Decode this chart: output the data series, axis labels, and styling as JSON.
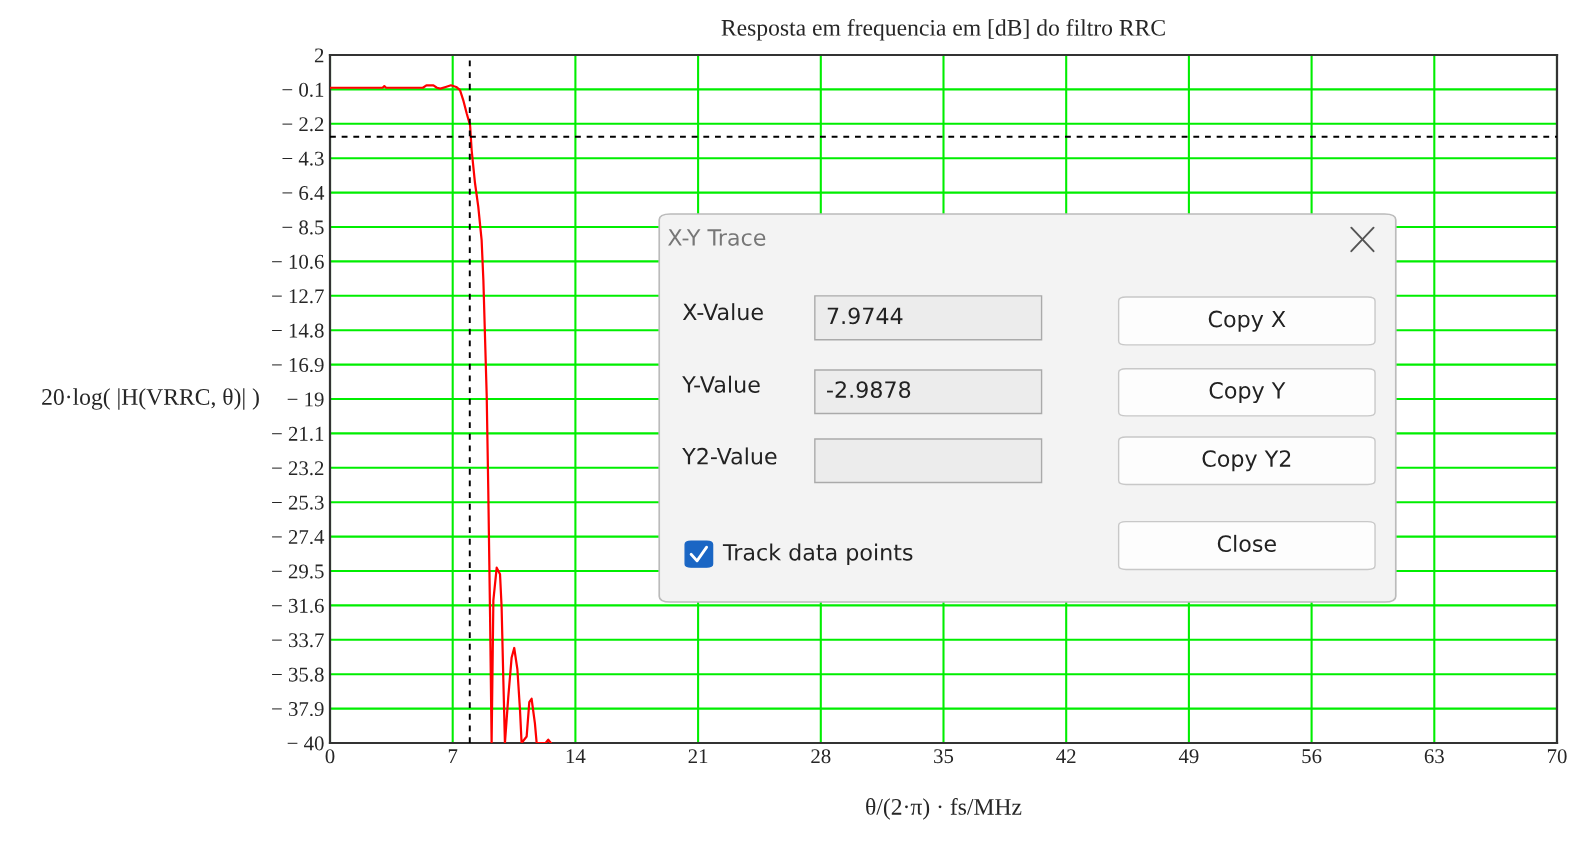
{
  "chart_data": {
    "type": "line",
    "title": "Resposta em frequencia em [dB] do filtro RRC",
    "xlabel": "θ/(2·π) · fs/MHz",
    "ylabel": "20·log( |H(VRRC, θ)| )",
    "series": [
      {
        "color": "#ff0000",
        "x": [
          0,
          3.0,
          3.1,
          3.2,
          5.3,
          5.5,
          5.9,
          6.1,
          6.3,
          6.6,
          6.9,
          7.2,
          7.42,
          7.6,
          7.8,
          7.99,
          8.08,
          8.27,
          8.46,
          8.65,
          8.75,
          8.94,
          9.03,
          9.13,
          9.22,
          9.32,
          9.51,
          9.7,
          9.79,
          9.89,
          9.98,
          10.17,
          10.36,
          10.51,
          10.69,
          10.84,
          10.93,
          11.22,
          11.37,
          11.5,
          11.69,
          11.79,
          12.3,
          12.45,
          12.6
        ],
        "values": [
          0,
          0,
          0.1,
          0,
          0,
          0.15,
          0.15,
          0,
          -0.05,
          0.05,
          0.15,
          0.05,
          -0.15,
          -0.75,
          -1.57,
          -2.28,
          -3.8,
          -5.8,
          -7.27,
          -9.3,
          -11.75,
          -18.8,
          -24.6,
          -32.1,
          -40,
          -31.3,
          -29.3,
          -29.7,
          -31.7,
          -36.2,
          -40,
          -37.2,
          -34.8,
          -34.2,
          -35.5,
          -38,
          -40,
          -39.6,
          -37.5,
          -37.3,
          -38.8,
          -40,
          -40,
          -39.8,
          -40
        ]
      }
    ],
    "xlim": [
      0,
      70
    ],
    "xticks": [
      0,
      7,
      14,
      21,
      28,
      35,
      42,
      49,
      56,
      63,
      70
    ],
    "ylim": [
      -40,
      2
    ],
    "yticks": [
      2,
      {
        "value": -0.1,
        "label": "− 0.1"
      },
      {
        "value": -2.2,
        "label": "− 2.2"
      },
      {
        "value": -4.3,
        "label": "− 4.3"
      },
      {
        "value": -6.4,
        "label": "− 6.4"
      },
      {
        "value": -8.5,
        "label": "− 8.5"
      },
      {
        "value": -10.6,
        "label": "− 10.6"
      },
      {
        "value": -12.7,
        "label": "− 12.7"
      },
      {
        "value": -14.8,
        "label": "− 14.8"
      },
      {
        "value": -16.9,
        "label": "− 16.9"
      },
      {
        "value": -19,
        "label": "− 19"
      },
      {
        "value": -21.1,
        "label": "− 21.1"
      },
      {
        "value": -23.2,
        "label": "− 23.2"
      },
      {
        "value": -25.3,
        "label": "− 25.3"
      },
      {
        "value": -27.4,
        "label": "− 27.4"
      },
      {
        "value": -29.5,
        "label": "− 29.5"
      },
      {
        "value": -31.6,
        "label": "− 31.6"
      },
      {
        "value": -33.7,
        "label": "− 33.7"
      },
      {
        "value": -35.8,
        "label": "− 35.8"
      },
      {
        "value": -37.9,
        "label": "− 37.9"
      },
      {
        "value": -40,
        "label": "− 40"
      }
    ],
    "grid": true,
    "ref_lines": [
      {
        "axis": "x",
        "value": 7.9744,
        "color": "#000000",
        "line_style": "dashed"
      },
      {
        "axis": "y",
        "value": -2.9878,
        "color": "#000000",
        "line_style": "dashed"
      }
    ],
    "annotations": [
      "X-Y Trace",
      "X-Value",
      "7.9744",
      "Y-Value",
      "-2.9878",
      "Y2-Value",
      "Copy X",
      "Copy Y",
      "Copy Y2",
      "Track data points",
      "Close"
    ]
  }
}
